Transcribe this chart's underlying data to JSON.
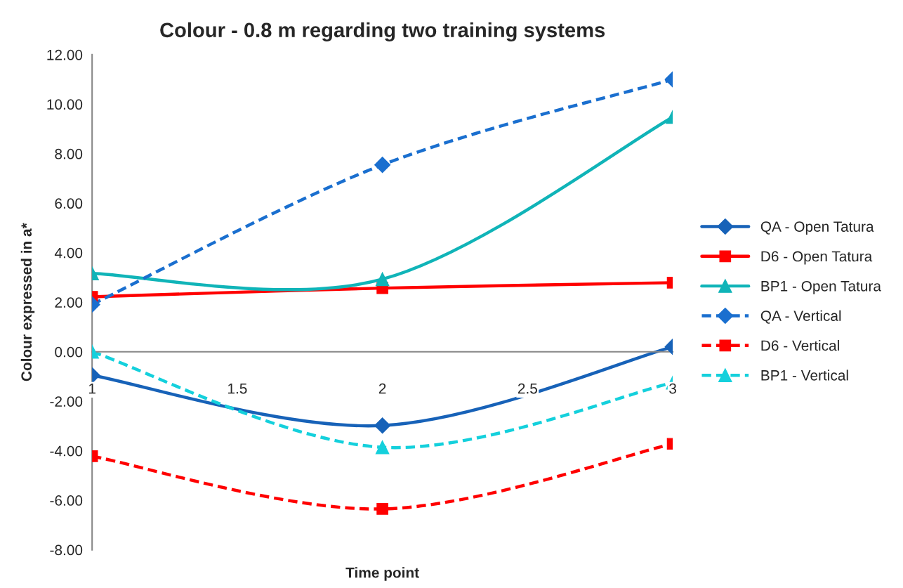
{
  "chart_data": {
    "type": "line",
    "title": "Colour - 0.8 m regarding two training systems",
    "xlabel": "Time point",
    "ylabel": "Colour expressed in a*",
    "x": [
      1,
      2,
      3
    ],
    "series": [
      {
        "name": "QA - Open Tatura",
        "color": "#1762b8",
        "marker": "diamond",
        "line_style": "solid",
        "values": [
          -0.95,
          -2.98,
          0.2
        ]
      },
      {
        "name": "D6 - Open Tatura",
        "color": "#ff0000",
        "marker": "square",
        "line_style": "solid",
        "values": [
          2.22,
          2.57,
          2.79
        ]
      },
      {
        "name": "BP1 - Open Tatura",
        "color": "#10b4b8",
        "marker": "triangle",
        "line_style": "solid",
        "values": [
          3.16,
          2.93,
          9.48
        ]
      },
      {
        "name": "QA - Vertical",
        "color": "#1a6fcf",
        "marker": "diamond",
        "line_style": "dashed",
        "values": [
          1.91,
          7.55,
          11.0
        ]
      },
      {
        "name": "D6 - Vertical",
        "color": "#ff0000",
        "marker": "square",
        "line_style": "dashed",
        "values": [
          -4.22,
          -6.35,
          -3.72
        ]
      },
      {
        "name": "BP1 - Vertical",
        "color": "#14d0dc",
        "marker": "triangle",
        "line_style": "dashed",
        "values": [
          0.0,
          -3.86,
          -1.25
        ]
      }
    ],
    "xlim": [
      1,
      3
    ],
    "xticks": [
      1,
      1.5,
      2,
      2.5,
      3
    ],
    "ylim": [
      -8,
      12
    ],
    "yticks": [
      {
        "value": -8,
        "label": "-8.00"
      },
      {
        "value": -6,
        "label": "-6.00"
      },
      {
        "value": -4,
        "label": "-4.00"
      },
      {
        "value": -2,
        "label": "-2.00"
      },
      {
        "value": 0,
        "label": "0.00"
      },
      {
        "value": 2,
        "label": "2.00"
      },
      {
        "value": 4,
        "label": "4.00"
      },
      {
        "value": 6,
        "label": "6.00"
      },
      {
        "value": 8,
        "label": "8.00"
      },
      {
        "value": 10,
        "label": "10.00"
      },
      {
        "value": 12,
        "label": "12.00"
      }
    ],
    "grid": false,
    "legend": "right"
  }
}
